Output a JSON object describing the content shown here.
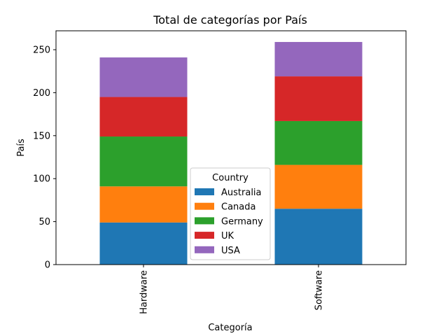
{
  "chart_data": {
    "type": "bar",
    "stacked": true,
    "title": "Total de categorías por País",
    "xlabel": "Categoría",
    "ylabel": "País",
    "categories": [
      "Hardware",
      "Software"
    ],
    "ylim": [
      0,
      272
    ],
    "yticks": [
      0,
      50,
      100,
      150,
      200,
      250
    ],
    "grid": false,
    "legend": {
      "title": "Country",
      "placement": "lower center"
    },
    "series": [
      {
        "name": "Australia",
        "color": "#1f77b4",
        "values": [
          49,
          65
        ]
      },
      {
        "name": "Canada",
        "color": "#ff7f0e",
        "values": [
          42,
          51
        ]
      },
      {
        "name": "Germany",
        "color": "#2ca02c",
        "values": [
          58,
          51
        ]
      },
      {
        "name": "UK",
        "color": "#d62728",
        "values": [
          46,
          52
        ]
      },
      {
        "name": "USA",
        "color": "#9467bd",
        "values": [
          46,
          40
        ]
      }
    ]
  }
}
